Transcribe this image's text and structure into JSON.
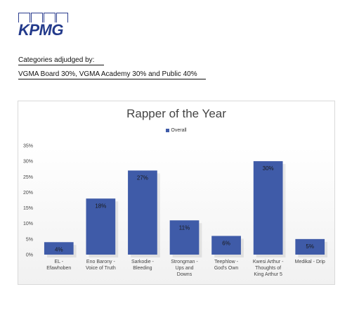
{
  "header": {
    "logo_text": "KPMG",
    "categories_label": "Categories adjudged by:",
    "weighting_text": "VGMA Board   30%, VGMA Academy 30% and Public  40%"
  },
  "colors": {
    "bar": "#3f5ba8",
    "brand": "#233a8b"
  },
  "chart_data": {
    "type": "bar",
    "title": "Rapper of the Year",
    "legend": [
      "Overall"
    ],
    "legend_position": "top",
    "categories": [
      [
        "EL -",
        "Efawhoben"
      ],
      [
        "Eno Barony -",
        "Voice of Truth"
      ],
      [
        "Sarkodie -",
        "Bleeding"
      ],
      [
        "Strongman -",
        "Ups and",
        "Downs"
      ],
      [
        "Teephlow -",
        "God's Own"
      ],
      [
        "Kwesi Arthur -",
        "Thoughts of",
        "King Arthur 5"
      ],
      [
        "Medikal - Drip"
      ]
    ],
    "series": [
      {
        "name": "Overall",
        "values": [
          4,
          18,
          27,
          11,
          6,
          30,
          5
        ]
      }
    ],
    "data_labels": [
      "4%",
      "18%",
      "27%",
      "11%",
      "6%",
      "30%",
      "5%"
    ],
    "ylim": [
      0,
      35
    ],
    "yticks": [
      "0%",
      "5%",
      "10%",
      "15%",
      "20%",
      "25%",
      "30%",
      "35%"
    ],
    "grid": false
  }
}
